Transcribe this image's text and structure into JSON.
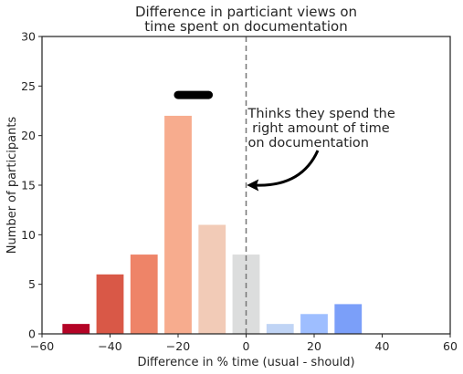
{
  "chart_data": {
    "type": "bar",
    "title_lines": [
      "Difference in particiant views on",
      "time spent on documentation"
    ],
    "xlabel": "Difference in % time (usual - should)",
    "ylabel": "Number of participants",
    "xlim": [
      -60,
      60
    ],
    "ylim": [
      0,
      30
    ],
    "xticks": [
      -60,
      -40,
      -20,
      0,
      20,
      40,
      60
    ],
    "yticks": [
      0,
      5,
      10,
      15,
      20,
      25,
      30
    ],
    "bar_width": 8,
    "bars": [
      {
        "x": -50,
        "value": 1,
        "color": "#b40426"
      },
      {
        "x": -40,
        "value": 6,
        "color": "#d95847"
      },
      {
        "x": -30,
        "value": 8,
        "color": "#ee8468"
      },
      {
        "x": -20,
        "value": 22,
        "color": "#f7ac8e"
      },
      {
        "x": -10,
        "value": 11,
        "color": "#f2cbb7"
      },
      {
        "x": 0,
        "value": 8,
        "color": "#dcdddd"
      },
      {
        "x": 10,
        "value": 1,
        "color": "#c0d4f5"
      },
      {
        "x": 20,
        "value": 2,
        "color": "#9ebeff"
      },
      {
        "x": 30,
        "value": 3,
        "color": "#7b9ff9"
      }
    ],
    "vline": {
      "x": 0,
      "style": "dashed",
      "color": "#777777"
    },
    "highlight_bar": {
      "x_from": -20,
      "x_to": -11,
      "y": 24.1
    },
    "annotation": {
      "lines": [
        "Thinks they spend the",
        " right amount of time",
        "on documentation"
      ],
      "arrow_to": {
        "x": 0.5,
        "y": 15
      }
    },
    "grid": false,
    "legend": "none"
  }
}
